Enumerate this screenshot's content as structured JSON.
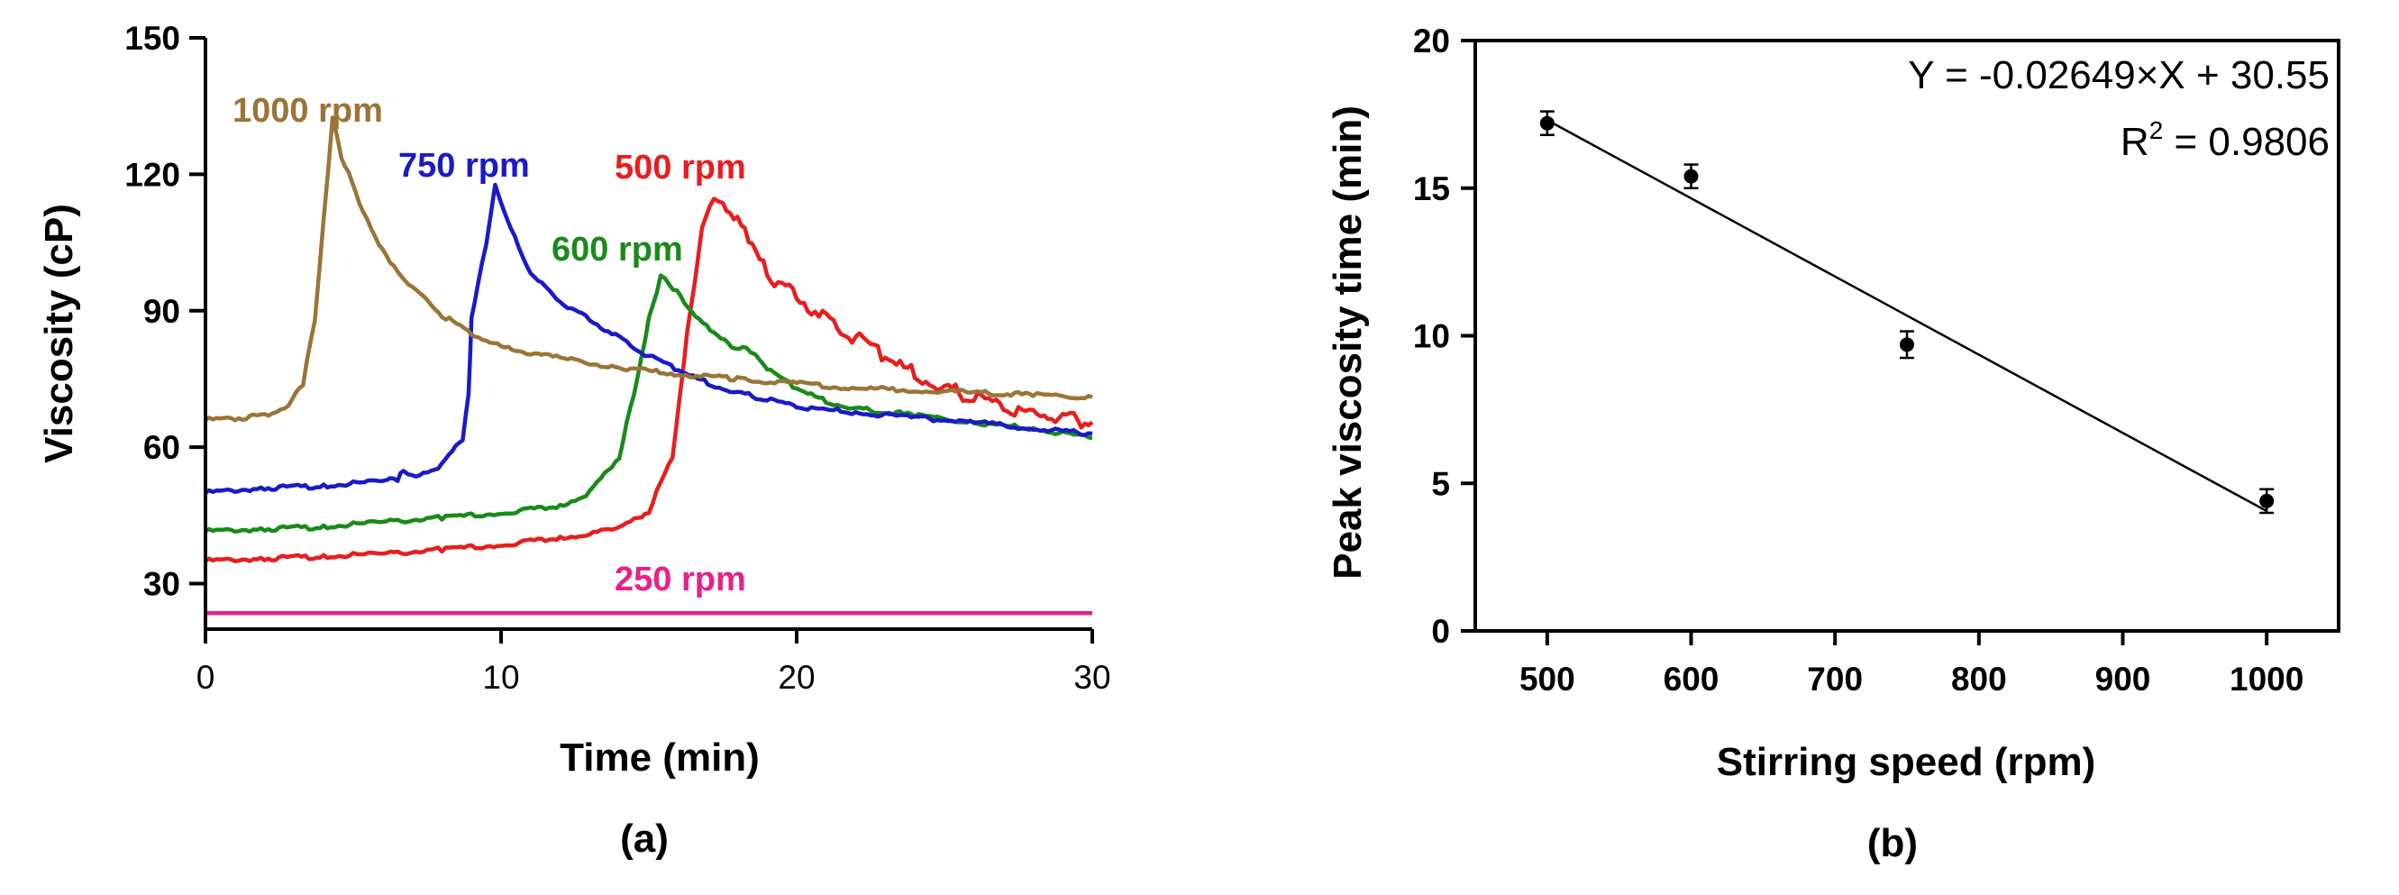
{
  "chart_data": [
    {
      "type": "line",
      "panel_label": "(a)",
      "xlabel": "Time (min)",
      "ylabel": "Viscosity (cP)",
      "xlim": [
        0,
        30
      ],
      "ylim": [
        20,
        150
      ],
      "xticks": [
        "0",
        "10",
        "20",
        "30"
      ],
      "yticks": [
        "30",
        "60",
        "90",
        "120",
        "150"
      ],
      "grid": false,
      "series": [
        {
          "name": "1000 rpm",
          "color": "#9a7536",
          "x": [
            0,
            1,
            2,
            2.8,
            3.3,
            3.7,
            4.0,
            4.3,
            4.6,
            5.2,
            6,
            7,
            8,
            9,
            10,
            12,
            14,
            16,
            18,
            20,
            22,
            24,
            26,
            28,
            30
          ],
          "y": [
            66,
            66.3,
            67,
            69,
            74,
            88,
            110,
            132,
            124,
            114,
            103,
            95,
            89,
            85,
            82,
            79.5,
            77.5,
            76,
            75,
            74,
            73,
            72.5,
            72,
            71.5,
            71
          ]
        },
        {
          "name": "750 rpm",
          "color": "#1a1ac8",
          "x": [
            0,
            2,
            4,
            6,
            6.5,
            6.7,
            7,
            8,
            8.7,
            8.9,
            9.0,
            9.2,
            9.5,
            9.8,
            10.2,
            11,
            12,
            13,
            14,
            15,
            16,
            17,
            18,
            19,
            20,
            22,
            24,
            26,
            28,
            30
          ],
          "y": [
            50,
            51,
            51.5,
            52.5,
            53,
            55,
            53.5,
            56,
            62,
            72,
            88,
            95,
            105,
            118,
            110,
            98,
            92,
            88,
            84,
            80,
            77,
            74,
            72,
            70.5,
            69,
            67.5,
            66.5,
            65.5,
            64,
            63
          ]
        },
        {
          "name": "600 rpm",
          "color": "#1a8a1a",
          "x": [
            0,
            2,
            4,
            6,
            8,
            10,
            12,
            13,
            14,
            14.5,
            15,
            15.4,
            15.7,
            16.2,
            16.7,
            17.2,
            17.8,
            18.3,
            18.6,
            19,
            20,
            21,
            22,
            24,
            26,
            28,
            30
          ],
          "y": [
            41.5,
            42,
            42.5,
            43.5,
            44.5,
            45.5,
            47,
            50,
            58,
            72,
            88,
            97.5,
            96,
            92,
            88,
            85,
            82,
            82,
            80,
            77,
            73,
            70,
            68.5,
            67,
            65.5,
            64,
            62
          ]
        },
        {
          "name": "500 rpm",
          "color": "#e81e1e",
          "x": [
            0,
            2,
            4,
            6,
            8,
            10,
            12,
            14,
            15,
            15.8,
            16.3,
            16.8,
            17.2,
            17.5,
            18,
            18.5,
            19,
            20,
            21,
            22,
            23,
            24,
            25,
            26,
            27,
            28,
            29,
            30
          ],
          "y": [
            35,
            35.5,
            36,
            36.5,
            37.5,
            38.5,
            40,
            42,
            46,
            58,
            85,
            108,
            115,
            114,
            110,
            104,
            98,
            93,
            88,
            84,
            80,
            76,
            73,
            71,
            69,
            67.5,
            66.5,
            65.5
          ]
        },
        {
          "name": "250 rpm",
          "color": "#e8208c",
          "x": [
            0,
            30
          ],
          "y": [
            23.5,
            23.5
          ]
        }
      ]
    },
    {
      "type": "scatter",
      "panel_label": "(b)",
      "xlabel": "Stirring speed (rpm)",
      "ylabel": "Peak viscosity time (min)",
      "xlim": [
        450,
        1050
      ],
      "ylim": [
        0,
        20
      ],
      "xticks": [
        "500",
        "600",
        "700",
        "800",
        "900",
        "1000"
      ],
      "yticks": [
        "0",
        "5",
        "10",
        "15",
        "20"
      ],
      "grid": false,
      "x": [
        500,
        600,
        750,
        1000
      ],
      "y": [
        17.2,
        15.4,
        9.7,
        4.4
      ],
      "error": [
        0.4,
        0.4,
        0.45,
        0.4
      ],
      "fit": {
        "slope": -0.02649,
        "intercept": 30.55,
        "x_range": [
          500,
          1000
        ]
      },
      "equation": "Y = -0.02649×X + 30.55",
      "r2_prefix": "R",
      "r2_sup": "2",
      "r2_value": " = 0.9806"
    }
  ]
}
